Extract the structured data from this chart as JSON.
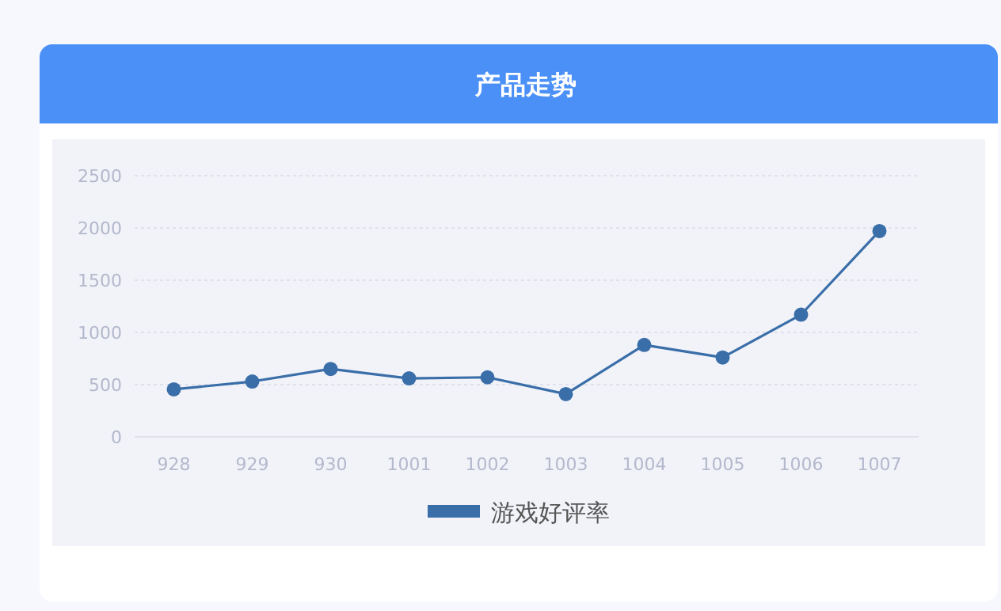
{
  "chart_data": {
    "type": "line",
    "title": "产品走势",
    "categories": [
      "928",
      "929",
      "930",
      "1001",
      "1002",
      "1003",
      "1004",
      "1005",
      "1006",
      "1007"
    ],
    "series": [
      {
        "name": "游戏好评率",
        "color": "#3a6ea8",
        "values": [
          455,
          530,
          650,
          560,
          570,
          410,
          880,
          760,
          1170,
          1970
        ]
      }
    ],
    "ylim": [
      0,
      2500
    ],
    "yticks": [
      0,
      500,
      1000,
      1500,
      2000,
      2500
    ],
    "grid": "y",
    "legend": "bottom",
    "marker": "circle"
  }
}
